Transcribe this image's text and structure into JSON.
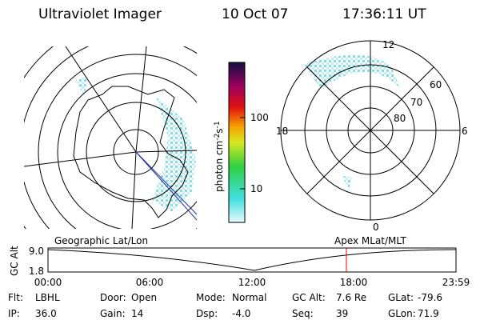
{
  "header": {
    "title": "Ultraviolet Imager",
    "date": "10 Oct 07",
    "time": "17:36:11 UT"
  },
  "polar_plot": {
    "mlt_labels": [
      "12",
      "18",
      "6",
      "0"
    ],
    "lat_labels": [
      "60",
      "70",
      "80"
    ]
  },
  "colorbar": {
    "label_parts": [
      "photon cm",
      "-2",
      "s",
      "-1"
    ],
    "ticks": [
      "100",
      "10"
    ]
  },
  "altitude_plot": {
    "left_title": "Geographic Lat/Lon",
    "right_title": "Apex MLat/MLT",
    "y_label": "GC Alt",
    "y_ticks": [
      "9.0",
      "1.8"
    ],
    "x_ticks": [
      "00:00",
      "06:00",
      "12:00",
      "18:00",
      "23:59"
    ]
  },
  "info": {
    "rows": [
      [
        [
          "Flt:",
          "LBHL"
        ],
        [
          "Door:",
          "Open"
        ],
        [
          "Mode:",
          "Normal"
        ],
        [
          "GC Alt:",
          "7.6 Re"
        ],
        [
          "GLat:",
          "-79.6"
        ]
      ],
      [
        [
          "IP:",
          "36.0"
        ],
        [
          "Gain:",
          "14"
        ],
        [
          "Dsp:",
          "-4.0"
        ],
        [
          "Seq:",
          "39"
        ],
        [
          "GLon:",
          "71.9"
        ]
      ]
    ]
  }
}
